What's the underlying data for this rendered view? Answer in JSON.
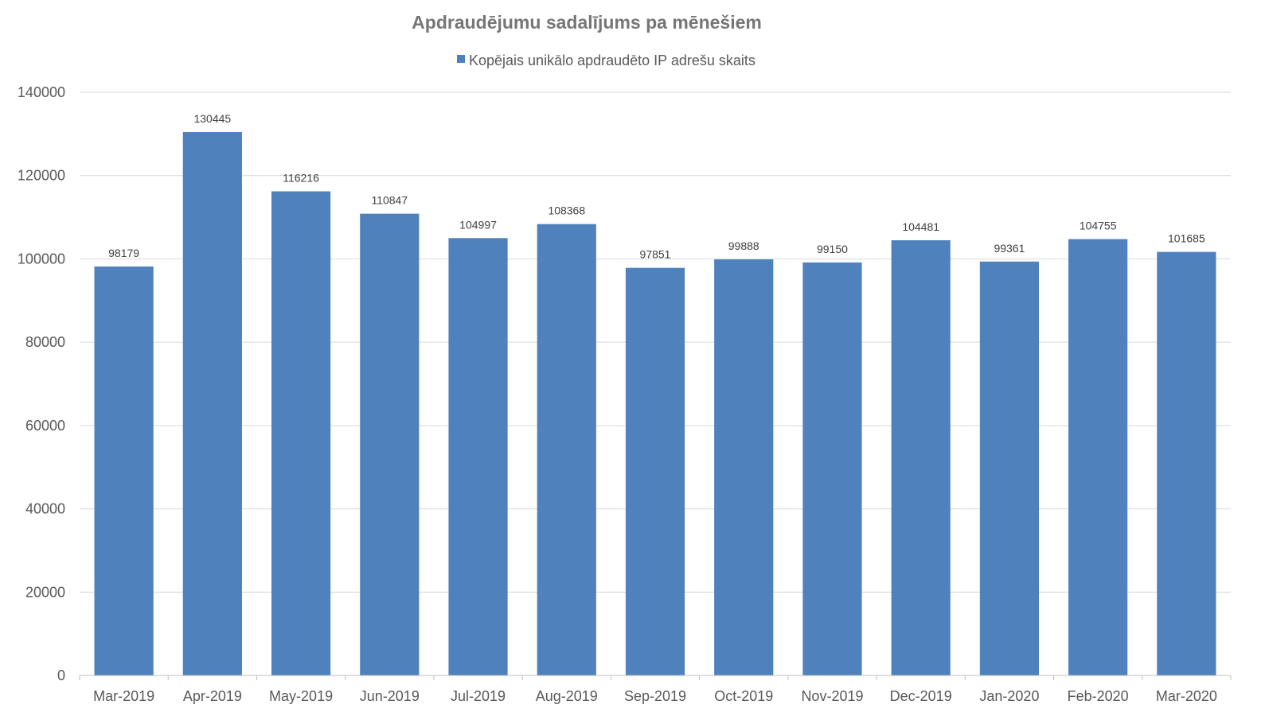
{
  "chart_data": {
    "type": "bar",
    "title": "Apdraudējumu sadalījums pa mēnešiem",
    "xlabel": "",
    "ylabel": "",
    "categories": [
      "Mar-2019",
      "Apr-2019",
      "May-2019",
      "Jun-2019",
      "Jul-2019",
      "Aug-2019",
      "Sep-2019",
      "Oct-2019",
      "Nov-2019",
      "Dec-2019",
      "Jan-2020",
      "Feb-2020",
      "Mar-2020"
    ],
    "series": [
      {
        "name": "Kopējais unikālo apdraudēto IP adrešu skaits",
        "color": "#4f81bd",
        "values": [
          98179,
          130445,
          116216,
          110847,
          104997,
          108368,
          97851,
          99888,
          99150,
          104481,
          99361,
          104755,
          101685
        ]
      }
    ],
    "ylim": [
      0,
      140000
    ],
    "yticks": [
      "0",
      "20000",
      "40000",
      "60000",
      "80000",
      "100000",
      "120000",
      "140000"
    ],
    "ytick_values": [
      0,
      20000,
      40000,
      60000,
      80000,
      100000,
      120000,
      140000
    ],
    "grid": true,
    "legend_position": "top-center",
    "data_labels": true
  }
}
